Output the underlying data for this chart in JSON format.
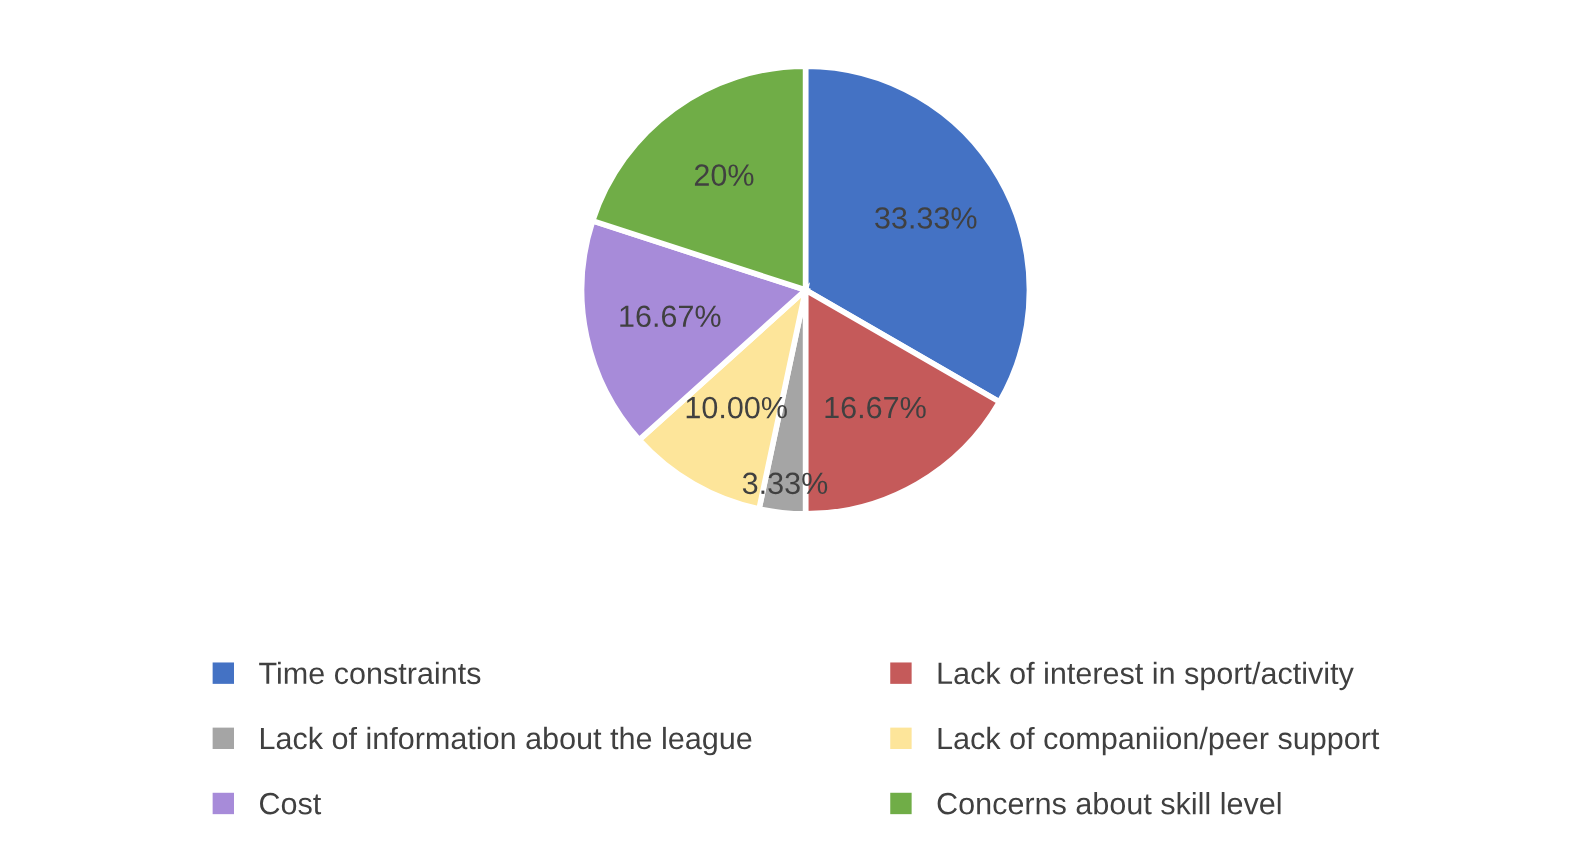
{
  "chart_data": {
    "type": "pie",
    "categories": [
      "Time constraints",
      "Lack of interest in sport/activity",
      "Lack of information about the league",
      "Lack of companiion/peer support",
      "Cost",
      "Concerns about skill level"
    ],
    "values": [
      33.33,
      16.67,
      3.33,
      10.0,
      16.67,
      20
    ],
    "value_labels": [
      "33.33%",
      "16.67%",
      "3.33%",
      "10.00%",
      "16.67%",
      "20%"
    ],
    "colors": [
      "#4472c4",
      "#c55a5a",
      "#a5a5a5",
      "#fde59a",
      "#a78bd9",
      "#70ad47"
    ],
    "legend": "bottom"
  }
}
